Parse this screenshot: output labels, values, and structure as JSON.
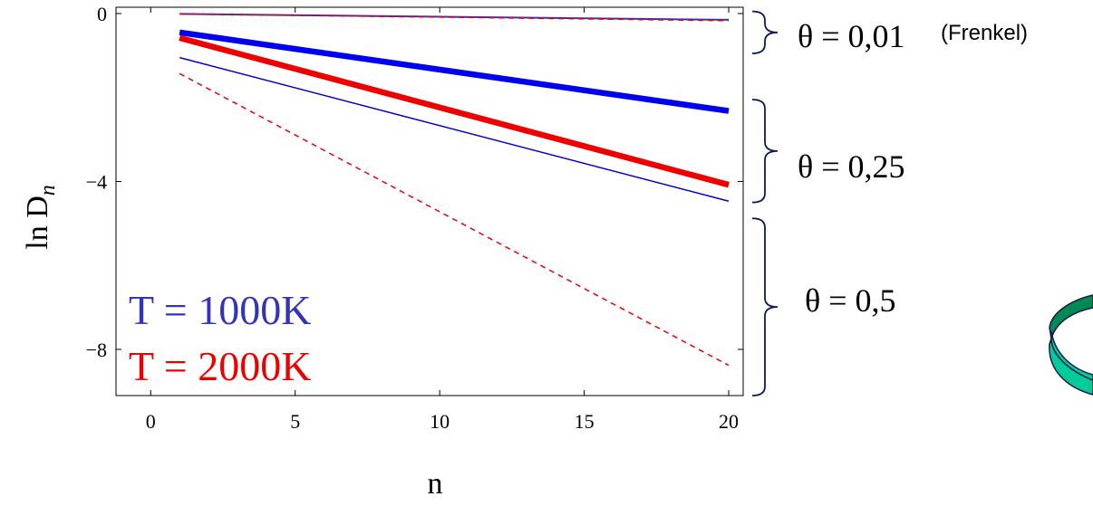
{
  "chart_data": {
    "type": "line",
    "title": "",
    "xlabel": "n",
    "ylabel": "ln D",
    "ylabel_subscript": "n",
    "xlim": [
      -1.2,
      20.5
    ],
    "ylim": [
      -9.1,
      0.15
    ],
    "x_ticks": [
      0,
      5,
      10,
      15,
      20
    ],
    "x_tick_labels": [
      "0",
      "5",
      "10",
      "15",
      "20"
    ],
    "y_ticks": [
      0,
      -4,
      -8
    ],
    "y_tick_labels": [
      "0",
      "−4",
      "−8"
    ],
    "grid": false,
    "series": [
      {
        "temperature": "1000K",
        "theta": "0,01",
        "color": "#3333bb",
        "width": 2,
        "dash": "none",
        "x": [
          1,
          20
        ],
        "y": [
          -0.01,
          -0.15
        ]
      },
      {
        "temperature": "2000K",
        "theta": "0,01",
        "color": "#ee0000",
        "width": 1.5,
        "dash": "dashed",
        "x": [
          1,
          20
        ],
        "y": [
          -0.01,
          -0.17
        ]
      },
      {
        "temperature": "1000K",
        "theta": "0,25",
        "color": "#0000ee",
        "width": 6.5,
        "dash": "none",
        "x": [
          1,
          20
        ],
        "y": [
          -0.45,
          -2.32
        ]
      },
      {
        "temperature": "2000K",
        "theta": "0,25",
        "color": "#ee0000",
        "width": 6.5,
        "dash": "none",
        "x": [
          1,
          20
        ],
        "y": [
          -0.58,
          -4.08
        ]
      },
      {
        "temperature": "1000K",
        "theta": "0,5",
        "color": "#0000cc",
        "width": 1.5,
        "dash": "none",
        "x": [
          1,
          20
        ],
        "y": [
          -1.05,
          -4.47
        ]
      },
      {
        "temperature": "2000K",
        "theta": "0,5",
        "color": "#ee0000",
        "width": 1.5,
        "dash": "dashed",
        "x": [
          1,
          20
        ],
        "y": [
          -1.43,
          -8.38
        ]
      }
    ],
    "legend": [
      {
        "text": "T = 1000K",
        "color": "#3333bb"
      },
      {
        "text": "T = 2000K",
        "color": "#ee0000"
      }
    ],
    "annotations": [
      {
        "text": "θ = 0,01",
        "group_y": [
          0.05,
          -0.95
        ]
      },
      {
        "text": "(Frenkel)"
      },
      {
        "text": "θ = 0,25",
        "group_y": [
          -2.05,
          -4.5
        ]
      },
      {
        "text": "θ = 0,5",
        "group_y": [
          -4.88,
          -9.1
        ]
      }
    ]
  },
  "decor": {
    "ring_colors": [
      "#00cc99",
      "#008855"
    ]
  }
}
